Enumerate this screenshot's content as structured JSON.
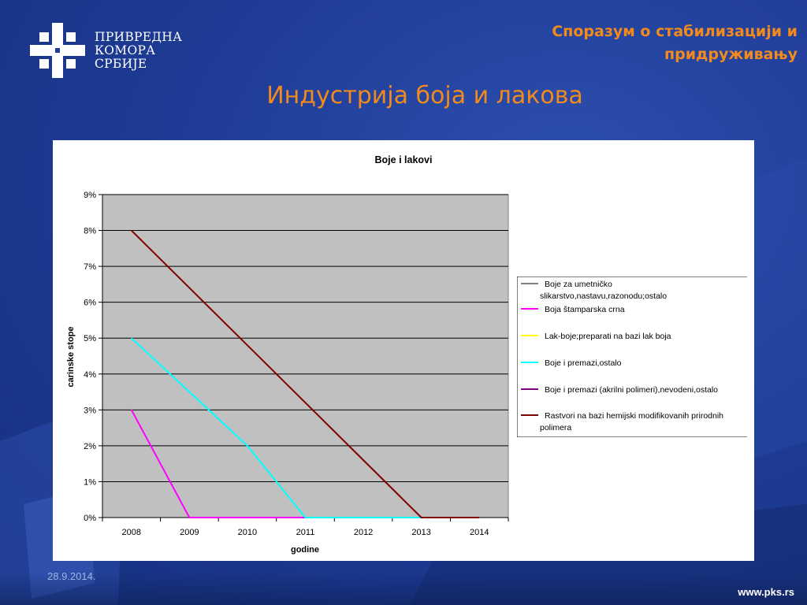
{
  "brand": {
    "logo_lines": [
      "ПРИВРЕДНА",
      "КОМОРА",
      "СРБИЈЕ"
    ],
    "accent_color": "#f28a1c"
  },
  "header": {
    "top_title_line1": "Споразум о стабилизацији и",
    "top_title_line2": "придруживању",
    "main_title": "Индустрија боја и лакова"
  },
  "footer": {
    "date": "28.9.2014.",
    "url": "www.pks.rs"
  },
  "chart_data": {
    "type": "line",
    "title": "Boje i lakovi",
    "xlabel": "godine",
    "ylabel": "carinske stope",
    "categories": [
      "2008",
      "2009",
      "2010",
      "2011",
      "2012",
      "2013",
      "2014"
    ],
    "y_ticks": [
      "0%",
      "1%",
      "2%",
      "3%",
      "4%",
      "5%",
      "6%",
      "7%",
      "8%",
      "9%"
    ],
    "ylim": [
      0,
      9
    ],
    "grid": true,
    "plot_background": "#c0c0c0",
    "legend_position": "right",
    "series": [
      {
        "name_lines": [
          "Boje za umetničko",
          "slikarstvo,nastavu,razonodu;ostalo"
        ],
        "color": "#000000",
        "values": [
          null,
          null,
          null,
          null,
          null,
          null,
          null
        ]
      },
      {
        "name_lines": [
          "Boja štamparska crna"
        ],
        "color": "#ff00ff",
        "values": [
          3,
          0,
          0,
          0,
          0,
          0,
          0
        ]
      },
      {
        "name_lines": [
          "Lak-boje;preparati na bazi lak boja"
        ],
        "color": "#ffff00",
        "values": [
          null,
          null,
          null,
          null,
          null,
          null,
          null
        ]
      },
      {
        "name_lines": [
          "Boje i premazi,ostalo"
        ],
        "color": "#00ffff",
        "values": [
          5,
          3.5,
          2,
          0,
          0,
          0,
          0
        ]
      },
      {
        "name_lines": [
          "Boje i premazi (akrilni polimeri),nevodeni,ostalo"
        ],
        "color": "#800080",
        "values": [
          null,
          null,
          null,
          null,
          null,
          null,
          null
        ]
      },
      {
        "name_lines": [
          "Rastvori na bazi hemijski modifikovanih prirodnih",
          "polimera"
        ],
        "color": "#800000",
        "values": [
          8,
          6.4,
          4.8,
          3.2,
          1.6,
          0,
          0
        ]
      }
    ]
  }
}
